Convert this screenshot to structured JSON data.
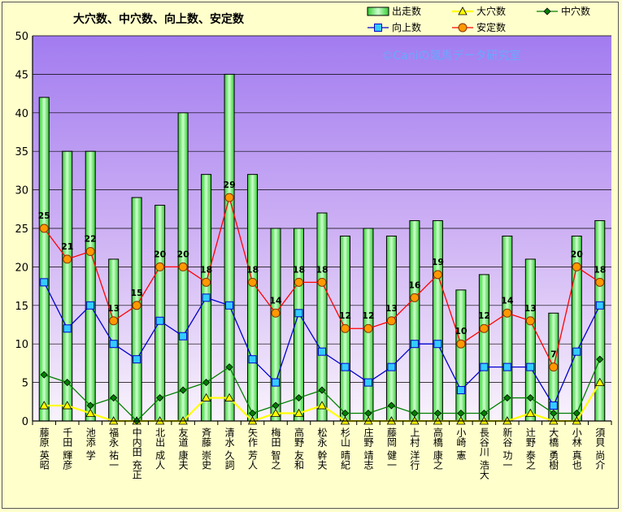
{
  "chart_data": {
    "type": "bar",
    "title": "大穴数、中穴数、向上数、安定数",
    "watermark": "©Caniの競馬データ研究室",
    "ylim": [
      0,
      50
    ],
    "yticks": [
      0,
      5,
      10,
      15,
      20,
      25,
      30,
      35,
      40,
      45,
      50
    ],
    "grid": true,
    "legend_position": "top-right",
    "categories": [
      "藤原 英昭",
      "千田 輝彦",
      "池添 学",
      "福永 祐一",
      "中内田 充正",
      "北出 成人",
      "友道 康夫",
      "斉藤 崇史",
      "清水 久詞",
      "矢作 芳人",
      "梅田 智之",
      "高野 友和",
      "松永 幹夫",
      "杉山 晴紀",
      "庄野 靖志",
      "藤岡 健一",
      "上村 洋行",
      "高橋 康之",
      "小崎 憲",
      "長谷川 浩大",
      "新谷 功一",
      "辻野 泰之",
      "大橋 勇樹",
      "小林 真也",
      "須貝 尚介"
    ],
    "series": [
      {
        "name": "出走数",
        "kind": "bar",
        "color": "#99ff99",
        "values": [
          42,
          35,
          35,
          21,
          29,
          28,
          40,
          32,
          45,
          32,
          25,
          25,
          27,
          24,
          25,
          24,
          26,
          26,
          17,
          19,
          24,
          21,
          14,
          24,
          26
        ]
      },
      {
        "name": "大穴数",
        "kind": "line",
        "color": "#ffff00",
        "marker": "triangle",
        "values": [
          2,
          2,
          1,
          0,
          0,
          0,
          0,
          3,
          3,
          0,
          1,
          1,
          2,
          0,
          0,
          0,
          0,
          0,
          0,
          0,
          0,
          1,
          0,
          0,
          5
        ]
      },
      {
        "name": "中穴数",
        "kind": "line",
        "color": "#008000",
        "marker": "diamond",
        "values": [
          6,
          5,
          2,
          3,
          0,
          3,
          4,
          5,
          7,
          1,
          2,
          3,
          4,
          1,
          1,
          2,
          1,
          1,
          1,
          1,
          3,
          3,
          1,
          1,
          8
        ]
      },
      {
        "name": "向上数",
        "kind": "line",
        "color": "#0000cc",
        "marker": "square",
        "values": [
          18,
          12,
          15,
          10,
          8,
          13,
          11,
          16,
          15,
          8,
          5,
          14,
          9,
          7,
          5,
          7,
          10,
          10,
          4,
          7,
          7,
          7,
          2,
          9,
          15
        ]
      },
      {
        "name": "安定数",
        "kind": "line",
        "color": "#ff0000",
        "marker": "circle",
        "values": [
          25,
          21,
          22,
          13,
          15,
          20,
          20,
          18,
          29,
          18,
          14,
          18,
          18,
          12,
          12,
          13,
          16,
          19,
          10,
          12,
          14,
          13,
          7,
          20,
          18
        ],
        "data_labels": true
      }
    ]
  }
}
